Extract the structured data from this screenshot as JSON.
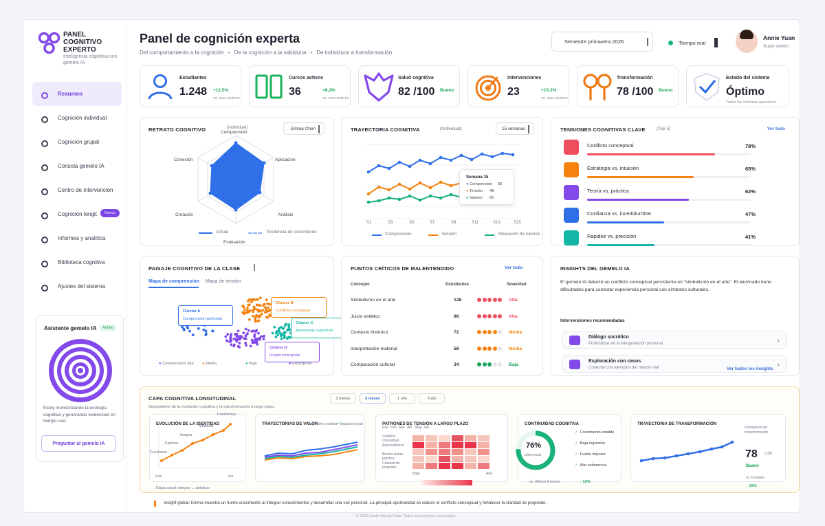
{
  "brand": {
    "title": "PANEL COGNITIVO EXPERTO",
    "subtitle": "Inteligencia cognitiva con gemelo IA"
  },
  "nav": [
    {
      "label": "Resumen",
      "active": true
    },
    {
      "label": "Cognición individual"
    },
    {
      "label": "Cognición grupal"
    },
    {
      "label": "Consola gemelo IA"
    },
    {
      "label": "Centro de intervención"
    },
    {
      "label": "Cognición longit",
      "badge": "Nuevo"
    },
    {
      "label": "Informes y analítica"
    },
    {
      "label": "Biblioteca cognitiva"
    },
    {
      "label": "Ajustes del sistema"
    }
  ],
  "assistant": {
    "title": "Asistente gemelo IA",
    "badge": "Activo",
    "text": "Estoy monitorizando la ecología cognitiva y generando evidencias en tiempo real.",
    "button": "Preguntar al gemelo IA"
  },
  "header": {
    "title": "Panel de cognición experta",
    "sub": [
      "Del comportamiento a la cognición",
      "De la cognición a la sabiduría",
      "De individuos a transformación"
    ],
    "semester": "Semestre primavera 2026",
    "realtime": "Tiempo real",
    "user": "Annie Yuan",
    "role": "Super Admin"
  },
  "kpis": [
    {
      "label": "Estudiantes",
      "value": "1.248",
      "change": "+12,5%",
      "sub": "vs. mes anterior",
      "icon": "user-icon",
      "color": "#2f6fe8"
    },
    {
      "label": "Cursos activos",
      "value": "36",
      "change": "+8,3%",
      "sub": "vs. mes anterior",
      "icon": "book-icon",
      "color": "#1ab35d"
    },
    {
      "label": "Salud cognitiva",
      "value": "82 /100",
      "change": "Bueno",
      "sub": "",
      "icon": "heart-icon",
      "color": "#8349ea"
    },
    {
      "label": "Intervenciones",
      "value": "23",
      "change": "+15,2%",
      "sub": "vs. mes anterior",
      "icon": "target-icon",
      "color": "#f07a15"
    },
    {
      "label": "Transformación",
      "value": "78 /100",
      "change": "Bueno",
      "sub": "",
      "icon": "transform-icon",
      "color": "#f07a15"
    },
    {
      "label": "Estado del sistema",
      "value": "Óptimo",
      "change": "",
      "sub": "Todos los sistemas operativos",
      "icon": "shield-check-icon",
      "color": "#2f6fe8"
    }
  ],
  "retrato": {
    "title": "RETRATO COGNITIVO",
    "student": "Emma Chen",
    "axes": [
      "Comprensión",
      "Aplicación",
      "Análisis",
      "Evaluación",
      "Creación",
      "Conexión"
    ],
    "axis_top_note": "(Individual)",
    "legend": [
      "Actual",
      "Tendencia de crecimiento"
    ]
  },
  "trayectoria": {
    "title": "TRAYECTORIA COGNITIVA",
    "note": "(Individual)",
    "range": "15 semanas",
    "x": [
      "S1",
      "S3",
      "S5",
      "S7",
      "S9",
      "S11",
      "S13",
      "S15"
    ],
    "legend": [
      "Comprensión",
      "Tensión",
      "Alineación de valores"
    ],
    "tooltip": {
      "title": "Semana 15",
      "rows": [
        [
          "Comprensión",
          "82"
        ],
        [
          "Tensión",
          "48"
        ],
        [
          "Valores",
          "65"
        ]
      ]
    }
  },
  "tensiones": {
    "title": "TENSIONES COGNITIVAS CLAVE",
    "note": "(Top 5)",
    "link": "Ver todo",
    "rows": [
      {
        "label": "Conflicto conceptual",
        "pct": "78%",
        "v": 78,
        "color": "#ef4e5f"
      },
      {
        "label": "Estrategia vs. intuición",
        "pct": "65%",
        "v": 65,
        "color": "#f5820f"
      },
      {
        "label": "Teoría vs. práctica",
        "pct": "62%",
        "v": 62,
        "color": "#8349ea"
      },
      {
        "label": "Confianza vs. incertidumbre",
        "pct": "47%",
        "v": 47,
        "color": "#2f6fe8"
      },
      {
        "label": "Rapidez vs. precisión",
        "pct": "41%",
        "v": 41,
        "color": "#14b7a5"
      }
    ]
  },
  "paisaje": {
    "title": "PAISAJE COGNITIVO DE LA CLASE",
    "tabs": [
      "Mapa de comprensión",
      "Mapa de tensión"
    ],
    "clusters": [
      {
        "name": "Clúster A",
        "desc": "Comprensión profunda"
      },
      {
        "name": "Clúster B",
        "desc": "Conflicto conceptual"
      },
      {
        "name": "Clúster C",
        "desc": "Aprendizaje superficial"
      },
      {
        "name": "Clúster D",
        "desc": "Insight emergente"
      }
    ],
    "legend": [
      "Comprensión alta",
      "Media",
      "Baja",
      "Emergente"
    ]
  },
  "puntos": {
    "title": "PUNTOS CRÍTICOS DE MALENTENDIDO",
    "link": "Ver todo",
    "headers": [
      "Concepto",
      "Estudiantes",
      "Severidad"
    ],
    "rows": [
      {
        "c": "Simbolismo en el arte",
        "n": "128",
        "s": "Alta",
        "d": 5,
        "color": "#ef4e5f"
      },
      {
        "c": "Juicio estético",
        "n": "96",
        "s": "Alta",
        "d": 5,
        "color": "#ef4e5f"
      },
      {
        "c": "Contexto histórico",
        "n": "72",
        "s": "Media",
        "d": 4,
        "color": "#f5820f"
      },
      {
        "c": "Interpretación material",
        "n": "58",
        "s": "Media",
        "d": 4,
        "color": "#f5820f"
      },
      {
        "c": "Comparación cultural",
        "n": "34",
        "s": "Baja",
        "d": 3,
        "color": "#19a35b"
      }
    ]
  },
  "insights": {
    "title": "INSIGHTS DEL GEMELO IA",
    "text": "El gemelo IA detectó un conflicto conceptual persistente en “simbolismo en el arte”. El alumnado tiene dificultades para conectar experiencia personal con símbolos culturales.",
    "sub": "Intervenciones recomendadas",
    "recs": [
      {
        "a": "Diálogo socrático",
        "b": "Profundizar en la interpretación personal"
      },
      {
        "a": "Exploración con casos",
        "b": "Conectar con ejemplos del mundo real"
      }
    ],
    "link": "Ver todos los insights"
  },
  "longitudinal": {
    "title": "CAPA COGNITIVA LONGITUDINAL",
    "sub": "Seguimiento de la evolución cognitiva y la transformación a largo plazo.",
    "ranges": [
      "3 meses",
      "6 meses",
      "1 año",
      "Todo"
    ],
    "identidad": {
      "title": "EVOLUCIÓN DE LA IDENTIDAD",
      "labels": [
        "Cuestionar",
        "Explorar",
        "Integrar",
        "Sintetizar",
        "Transformar"
      ],
      "x": [
        "Ene",
        "Jun"
      ],
      "note": "Etapa actual: integrar → sintetizar"
    },
    "valor": {
      "title": "TRAYECTORIAS DE VALOR",
      "legend": [
        "Expresión creativa",
        "Impacto social"
      ]
    },
    "patrones": {
      "title": "PATRONES DE TENSIÓN A LARGO PLAZO",
      "months": [
        "Ene",
        "Feb",
        "Mar",
        "Abr",
        "May",
        "Jun"
      ],
      "rows": [
        "Conflicto conceptual",
        "Autoconfianza",
        "Brecha teoría-práctica",
        "Claridad de propósito"
      ],
      "scale": [
        "Baja",
        "Alta"
      ]
    },
    "continuidad": {
      "title": "CONTINUIDAD COGNITIVA",
      "value": "76%",
      "label": "coherencia",
      "items": [
        "Crecimiento estable",
        "Baja regresión",
        "Fuerte impulso",
        "Alta coherencia"
      ],
      "vs": "vs. Últimos 6 meses",
      "delta": "↑ 12%"
    },
    "transform": {
      "title": "TRAYECTORIA DE TRANSFORMACIÓN",
      "label": "Puntuación de transformación",
      "value": "78",
      "max": "/100",
      "status": "Bueno",
      "vs": "vs. 6 meses",
      "delta": "↑ 15%"
    }
  },
  "global": "Insight global: Emma muestra un fuerte crecimiento al integrar conocimientos y desarrollar una voz personal. La principal oportunidad es reducir el conflicto conceptual y fortalecer la claridad de propósito.",
  "footer": "© 2026 Annie Yihong Yuan. Todos los derechos reservados."
}
